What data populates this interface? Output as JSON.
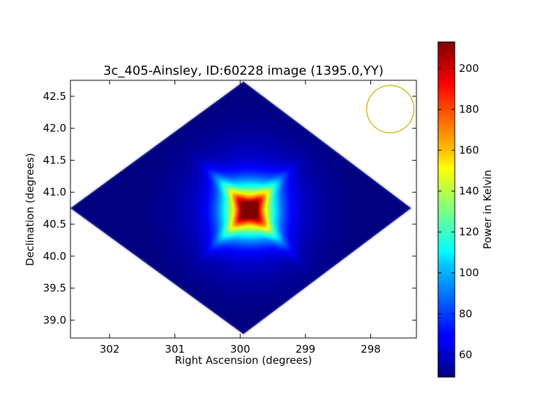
{
  "chart_data": {
    "type": "heatmap",
    "title": "3c_405-Ainsley, ID:60228 image (1395.0,YY)",
    "xlabel": "Right Ascension (degrees)",
    "ylabel": "Declination (degrees)",
    "colorbar_label": "Power in Kelvin",
    "xlim": [
      302.6,
      297.3
    ],
    "ylim": [
      38.72,
      42.75
    ],
    "x_ticks": [
      302,
      301,
      300,
      299,
      298
    ],
    "x_tick_labels": [
      "302",
      "301",
      "300",
      "299",
      "298"
    ],
    "y_ticks": [
      39.0,
      39.5,
      40.0,
      40.5,
      41.0,
      41.5,
      42.0,
      42.5
    ],
    "y_tick_labels": [
      "39.0",
      "39.5",
      "40.0",
      "40.5",
      "41.0",
      "41.5",
      "42.0",
      "42.5"
    ],
    "colorbar_range": [
      49,
      213
    ],
    "colorbar_ticks": [
      60,
      80,
      100,
      120,
      140,
      160,
      180,
      200
    ],
    "colorbar_tick_labels": [
      "60",
      "80",
      "100",
      "120",
      "140",
      "160",
      "180",
      "200"
    ],
    "colormap": "jet",
    "field_outline": [
      [
        302.6,
        40.75
      ],
      [
        299.95,
        42.73
      ],
      [
        297.38,
        40.75
      ],
      [
        299.95,
        38.78
      ]
    ],
    "peak": {
      "ra": 299.87,
      "dec": 40.73,
      "value": 213
    },
    "background_value": 52,
    "beam": {
      "ra": 297.7,
      "dec": 42.3,
      "radius_deg": 0.37,
      "color": "#c8b400"
    }
  }
}
